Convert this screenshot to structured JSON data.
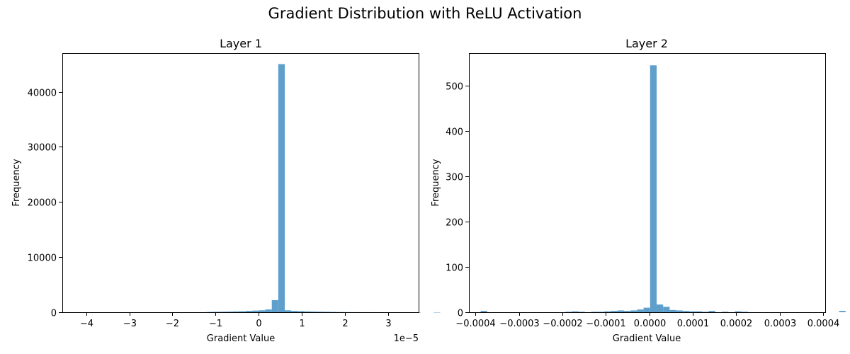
{
  "figure": {
    "title": "Gradient Distribution with ReLU Activation"
  },
  "chart_data": [
    {
      "type": "bar",
      "title": "Layer 1",
      "xlabel": "Gradient Value",
      "ylabel": "Frequency",
      "x_offset_label": "1e−5",
      "xlim": [
        -4.55,
        3.7
      ],
      "ylim": [
        0,
        47000
      ],
      "xticks": [
        -4,
        -3,
        -2,
        -1,
        0,
        1,
        2,
        3
      ],
      "xtick_labels": [
        "−4",
        "−3",
        "−2",
        "−1",
        "0",
        "1",
        "2",
        "3"
      ],
      "yticks": [
        0,
        10000,
        20000,
        30000,
        40000
      ],
      "ytick_labels": [
        "0",
        "10000",
        "20000",
        "30000",
        "40000"
      ],
      "bin_start": -4.2,
      "bin_width": 0.15,
      "values": [
        5,
        0,
        0,
        0,
        0,
        0,
        0,
        0,
        0,
        0,
        0,
        0,
        0,
        0,
        0,
        0,
        0,
        0,
        0,
        10,
        50,
        80,
        100,
        120,
        150,
        180,
        250,
        300,
        350,
        500,
        2200,
        45000,
        350,
        250,
        200,
        150,
        120,
        100,
        80,
        50,
        30,
        20,
        10,
        5,
        5,
        5,
        0,
        0,
        5,
        0,
        0,
        0,
        5,
        0,
        0,
        5
      ],
      "color": "#5f9fcc"
    },
    {
      "type": "bar",
      "title": "Layer 2",
      "xlabel": "Gradient Value",
      "ylabel": "Frequency",
      "xlim": [
        -0.000415,
        0.000405
      ],
      "ylim": [
        0,
        572
      ],
      "xticks": [
        -0.0004,
        -0.0003,
        -0.0002,
        -0.0001,
        0,
        0.0001,
        0.0002,
        0.0003,
        0.0004
      ],
      "xtick_labels": [
        "−0.0004",
        "−0.0003",
        "−0.0002",
        "−0.0001",
        "0.0000",
        "0.0001",
        "0.0002",
        "0.0003",
        "0.0004"
      ],
      "yticks": [
        0,
        100,
        200,
        300,
        400,
        500
      ],
      "ytick_labels": [
        "0",
        "100",
        "200",
        "300",
        "400",
        "500"
      ],
      "bin_start": -0.000388,
      "bin_width": 1.5e-05,
      "values": [
        3,
        0,
        0,
        0,
        0,
        0,
        0,
        0,
        0,
        0,
        0,
        0,
        0,
        1,
        2,
        1,
        0,
        1,
        1,
        2,
        3,
        4,
        3,
        4,
        6,
        10,
        545,
        17,
        12,
        5,
        4,
        3,
        2,
        2,
        1,
        3,
        0,
        1,
        0,
        2,
        1,
        0,
        0,
        0,
        0,
        0,
        0,
        0,
        0,
        0,
        0,
        0,
        0,
        0,
        0,
        3
      ],
      "color": "#5f9fcc"
    }
  ]
}
